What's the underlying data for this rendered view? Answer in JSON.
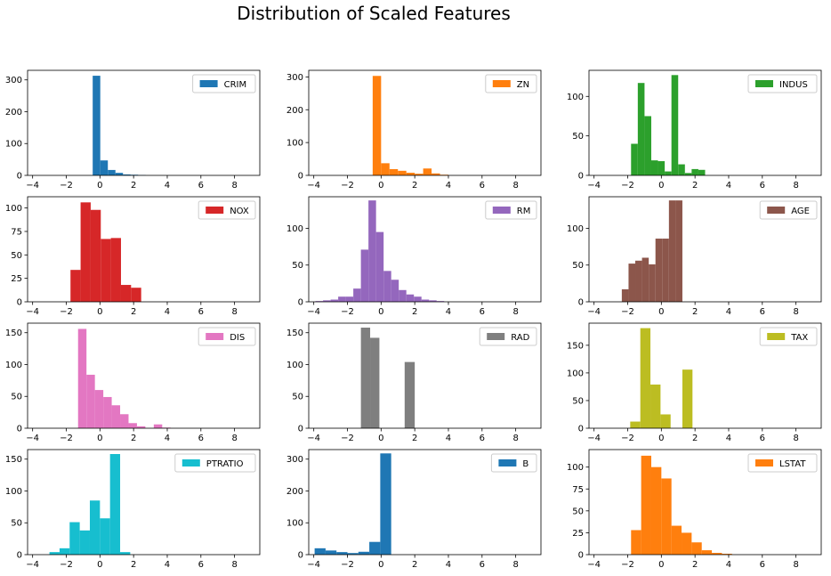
{
  "figure": {
    "title": "Distribution of Scaled Features"
  },
  "chart_data": [
    {
      "type": "bar",
      "label": "CRIM",
      "color": "#1f77b4",
      "xlim": [
        -4.3,
        9.5
      ],
      "xticks": [
        -4,
        -2,
        0,
        2,
        4,
        6,
        8
      ],
      "ylim": [
        0,
        330
      ],
      "yticks": [
        0,
        100,
        200,
        300
      ],
      "bins": [
        {
          "x0": -0.43,
          "x1": 0.02,
          "count": 313
        },
        {
          "x0": 0.02,
          "x1": 0.47,
          "count": 47
        },
        {
          "x0": 0.47,
          "x1": 0.92,
          "count": 17
        },
        {
          "x0": 0.92,
          "x1": 1.37,
          "count": 8
        },
        {
          "x0": 1.37,
          "x1": 1.82,
          "count": 3
        },
        {
          "x0": 1.82,
          "x1": 2.27,
          "count": 2
        },
        {
          "x0": 2.27,
          "x1": 2.72,
          "count": 1
        }
      ]
    },
    {
      "type": "bar",
      "label": "ZN",
      "color": "#ff7f0e",
      "xlim": [
        -4.3,
        9.5
      ],
      "xticks": [
        -4,
        -2,
        0,
        2,
        4,
        6,
        8
      ],
      "ylim": [
        0,
        320
      ],
      "yticks": [
        0,
        100,
        200,
        300
      ],
      "bins": [
        {
          "x0": -0.5,
          "x1": 0.0,
          "count": 303
        },
        {
          "x0": 0.0,
          "x1": 0.5,
          "count": 37
        },
        {
          "x0": 0.5,
          "x1": 1.0,
          "count": 19
        },
        {
          "x0": 1.0,
          "x1": 1.5,
          "count": 14
        },
        {
          "x0": 1.5,
          "x1": 2.0,
          "count": 8
        },
        {
          "x0": 2.0,
          "x1": 2.5,
          "count": 5
        },
        {
          "x0": 2.5,
          "x1": 3.0,
          "count": 21
        },
        {
          "x0": 3.0,
          "x1": 3.5,
          "count": 6
        },
        {
          "x0": 3.5,
          "x1": 4.0,
          "count": 2
        }
      ]
    },
    {
      "type": "bar",
      "label": "INDUS",
      "color": "#2ca02c",
      "xlim": [
        -4.3,
        9.5
      ],
      "xticks": [
        -4,
        -2,
        0,
        2,
        4,
        6,
        8
      ],
      "ylim": [
        0,
        133
      ],
      "yticks": [
        0,
        50,
        100
      ],
      "bins": [
        {
          "x0": -1.8,
          "x1": -1.4,
          "count": 40
        },
        {
          "x0": -1.4,
          "x1": -1.0,
          "count": 117
        },
        {
          "x0": -1.0,
          "x1": -0.6,
          "count": 75
        },
        {
          "x0": -0.6,
          "x1": -0.2,
          "count": 19
        },
        {
          "x0": -0.2,
          "x1": 0.2,
          "count": 18
        },
        {
          "x0": 0.2,
          "x1": 0.6,
          "count": 5
        },
        {
          "x0": 0.6,
          "x1": 1.0,
          "count": 127
        },
        {
          "x0": 1.0,
          "x1": 1.4,
          "count": 14
        },
        {
          "x0": 1.4,
          "x1": 1.8,
          "count": 3
        },
        {
          "x0": 1.8,
          "x1": 2.2,
          "count": 8
        },
        {
          "x0": 2.2,
          "x1": 2.6,
          "count": 7
        }
      ]
    },
    {
      "type": "bar",
      "label": "NOX",
      "color": "#d62728",
      "xlim": [
        -4.3,
        9.5
      ],
      "xticks": [
        -4,
        -2,
        0,
        2,
        4,
        6,
        8
      ],
      "ylim": [
        0,
        112
      ],
      "yticks": [
        0,
        25,
        50,
        75,
        100
      ],
      "bins": [
        {
          "x0": -1.75,
          "x1": -1.15,
          "count": 34
        },
        {
          "x0": -1.15,
          "x1": -0.55,
          "count": 106
        },
        {
          "x0": -0.55,
          "x1": 0.05,
          "count": 98
        },
        {
          "x0": 0.05,
          "x1": 0.65,
          "count": 67
        },
        {
          "x0": 0.65,
          "x1": 1.25,
          "count": 68
        },
        {
          "x0": 1.25,
          "x1": 1.85,
          "count": 18
        },
        {
          "x0": 1.85,
          "x1": 2.45,
          "count": 15
        }
      ]
    },
    {
      "type": "bar",
      "label": "RM",
      "color": "#9467bd",
      "xlim": [
        -4.3,
        9.5
      ],
      "xticks": [
        -4,
        -2,
        0,
        2,
        4,
        6,
        8
      ],
      "ylim": [
        0,
        143
      ],
      "yticks": [
        0,
        50,
        100
      ],
      "bins": [
        {
          "x0": -3.9,
          "x1": -3.45,
          "count": 1
        },
        {
          "x0": -3.45,
          "x1": -3.0,
          "count": 2
        },
        {
          "x0": -3.0,
          "x1": -2.55,
          "count": 3
        },
        {
          "x0": -2.55,
          "x1": -2.1,
          "count": 7
        },
        {
          "x0": -2.1,
          "x1": -1.65,
          "count": 7
        },
        {
          "x0": -1.65,
          "x1": -1.2,
          "count": 18
        },
        {
          "x0": -1.2,
          "x1": -0.75,
          "count": 71
        },
        {
          "x0": -0.75,
          "x1": -0.3,
          "count": 138
        },
        {
          "x0": -0.3,
          "x1": 0.15,
          "count": 95
        },
        {
          "x0": 0.15,
          "x1": 0.6,
          "count": 42
        },
        {
          "x0": 0.6,
          "x1": 1.05,
          "count": 30
        },
        {
          "x0": 1.05,
          "x1": 1.5,
          "count": 16
        },
        {
          "x0": 1.5,
          "x1": 1.95,
          "count": 10
        },
        {
          "x0": 1.95,
          "x1": 2.4,
          "count": 7
        },
        {
          "x0": 2.4,
          "x1": 2.85,
          "count": 3
        },
        {
          "x0": 2.85,
          "x1": 3.3,
          "count": 2
        },
        {
          "x0": 3.3,
          "x1": 3.75,
          "count": 1
        }
      ]
    },
    {
      "type": "bar",
      "label": "AGE",
      "color": "#8c564b",
      "xlim": [
        -4.3,
        9.5
      ],
      "xticks": [
        -4,
        -2,
        0,
        2,
        4,
        6,
        8
      ],
      "ylim": [
        0,
        143
      ],
      "yticks": [
        0,
        50,
        100
      ],
      "bins": [
        {
          "x0": -2.35,
          "x1": -1.95,
          "count": 17
        },
        {
          "x0": -1.95,
          "x1": -1.55,
          "count": 52
        },
        {
          "x0": -1.55,
          "x1": -1.15,
          "count": 56
        },
        {
          "x0": -1.15,
          "x1": -0.75,
          "count": 60
        },
        {
          "x0": -0.75,
          "x1": -0.35,
          "count": 51
        },
        {
          "x0": -0.35,
          "x1": 0.05,
          "count": 86
        },
        {
          "x0": 0.05,
          "x1": 0.45,
          "count": 86
        },
        {
          "x0": 0.45,
          "x1": 0.85,
          "count": 138
        },
        {
          "x0": 0.85,
          "x1": 1.25,
          "count": 138
        }
      ]
    },
    {
      "type": "bar",
      "label": "DIS",
      "color": "#e377c2",
      "xlim": [
        -4.3,
        9.5
      ],
      "xticks": [
        -4,
        -2,
        0,
        2,
        4,
        6,
        8
      ],
      "ylim": [
        0,
        165
      ],
      "yticks": [
        0,
        50,
        100,
        150
      ],
      "bins": [
        {
          "x0": -1.3,
          "x1": -0.8,
          "count": 156
        },
        {
          "x0": -0.8,
          "x1": -0.3,
          "count": 84
        },
        {
          "x0": -0.3,
          "x1": 0.2,
          "count": 60
        },
        {
          "x0": 0.2,
          "x1": 0.7,
          "count": 49
        },
        {
          "x0": 0.7,
          "x1": 1.2,
          "count": 36
        },
        {
          "x0": 1.2,
          "x1": 1.7,
          "count": 22
        },
        {
          "x0": 1.7,
          "x1": 2.2,
          "count": 8
        },
        {
          "x0": 2.2,
          "x1": 2.7,
          "count": 3
        },
        {
          "x0": 3.2,
          "x1": 3.7,
          "count": 6
        },
        {
          "x0": 3.7,
          "x1": 4.2,
          "count": 1
        }
      ]
    },
    {
      "type": "bar",
      "label": "RAD",
      "color": "#7f7f7f",
      "xlim": [
        -4.3,
        9.5
      ],
      "xticks": [
        -4,
        -2,
        0,
        2,
        4,
        6,
        8
      ],
      "ylim": [
        0,
        165
      ],
      "yticks": [
        0,
        50,
        100,
        150
      ],
      "bins": [
        {
          "x0": -1.2,
          "x1": -0.65,
          "count": 158
        },
        {
          "x0": -0.65,
          "x1": -0.1,
          "count": 142
        },
        {
          "x0": 1.4,
          "x1": 2.0,
          "count": 104
        }
      ]
    },
    {
      "type": "bar",
      "label": "TAX",
      "color": "#bcbd22",
      "xlim": [
        -4.3,
        9.5
      ],
      "xticks": [
        -4,
        -2,
        0,
        2,
        4,
        6,
        8
      ],
      "ylim": [
        0,
        190
      ],
      "yticks": [
        0,
        50,
        100,
        150
      ],
      "bins": [
        {
          "x0": -1.85,
          "x1": -1.25,
          "count": 12
        },
        {
          "x0": -1.25,
          "x1": -0.65,
          "count": 181
        },
        {
          "x0": -0.65,
          "x1": -0.05,
          "count": 79
        },
        {
          "x0": -0.05,
          "x1": 0.55,
          "count": 25
        },
        {
          "x0": 1.25,
          "x1": 1.85,
          "count": 106
        }
      ]
    },
    {
      "type": "bar",
      "label": "PTRATIO",
      "color": "#17becf",
      "xlim": [
        -4.3,
        9.5
      ],
      "xticks": [
        -4,
        -2,
        0,
        2,
        4,
        6,
        8
      ],
      "ylim": [
        0,
        165
      ],
      "yticks": [
        0,
        50,
        100,
        150
      ],
      "bins": [
        {
          "x0": -3.0,
          "x1": -2.4,
          "count": 4
        },
        {
          "x0": -2.4,
          "x1": -1.8,
          "count": 10
        },
        {
          "x0": -1.8,
          "x1": -1.2,
          "count": 51
        },
        {
          "x0": -1.2,
          "x1": -0.6,
          "count": 38
        },
        {
          "x0": -0.6,
          "x1": 0.0,
          "count": 85
        },
        {
          "x0": 0.0,
          "x1": 0.6,
          "count": 57
        },
        {
          "x0": 0.6,
          "x1": 1.2,
          "count": 158
        },
        {
          "x0": 1.2,
          "x1": 1.8,
          "count": 4
        }
      ]
    },
    {
      "type": "bar",
      "label": "B",
      "color": "#1f77b4",
      "xlim": [
        -4.3,
        9.5
      ],
      "xticks": [
        -4,
        -2,
        0,
        2,
        4,
        6,
        8
      ],
      "ylim": [
        0,
        330
      ],
      "yticks": [
        0,
        100,
        200,
        300
      ],
      "bins": [
        {
          "x0": -3.95,
          "x1": -3.3,
          "count": 20
        },
        {
          "x0": -3.3,
          "x1": -2.65,
          "count": 13
        },
        {
          "x0": -2.65,
          "x1": -2.0,
          "count": 8
        },
        {
          "x0": -2.0,
          "x1": -1.35,
          "count": 5
        },
        {
          "x0": -1.35,
          "x1": -0.7,
          "count": 9
        },
        {
          "x0": -0.7,
          "x1": -0.05,
          "count": 40
        },
        {
          "x0": -0.05,
          "x1": 0.6,
          "count": 318
        }
      ]
    },
    {
      "type": "bar",
      "label": "LSTAT",
      "color": "#ff7f0e",
      "xlim": [
        -4.3,
        9.5
      ],
      "xticks": [
        -4,
        -2,
        0,
        2,
        4,
        6,
        8
      ],
      "ylim": [
        0,
        120
      ],
      "yticks": [
        0,
        25,
        50,
        75,
        100
      ],
      "bins": [
        {
          "x0": -1.8,
          "x1": -1.2,
          "count": 28
        },
        {
          "x0": -1.2,
          "x1": -0.6,
          "count": 113
        },
        {
          "x0": -0.6,
          "x1": 0.0,
          "count": 100
        },
        {
          "x0": 0.0,
          "x1": 0.6,
          "count": 87
        },
        {
          "x0": 0.6,
          "x1": 1.2,
          "count": 33
        },
        {
          "x0": 1.2,
          "x1": 1.8,
          "count": 25
        },
        {
          "x0": 1.8,
          "x1": 2.4,
          "count": 14
        },
        {
          "x0": 2.4,
          "x1": 3.0,
          "count": 5
        },
        {
          "x0": 3.0,
          "x1": 3.6,
          "count": 2
        },
        {
          "x0": 3.6,
          "x1": 4.2,
          "count": 1
        }
      ]
    }
  ]
}
